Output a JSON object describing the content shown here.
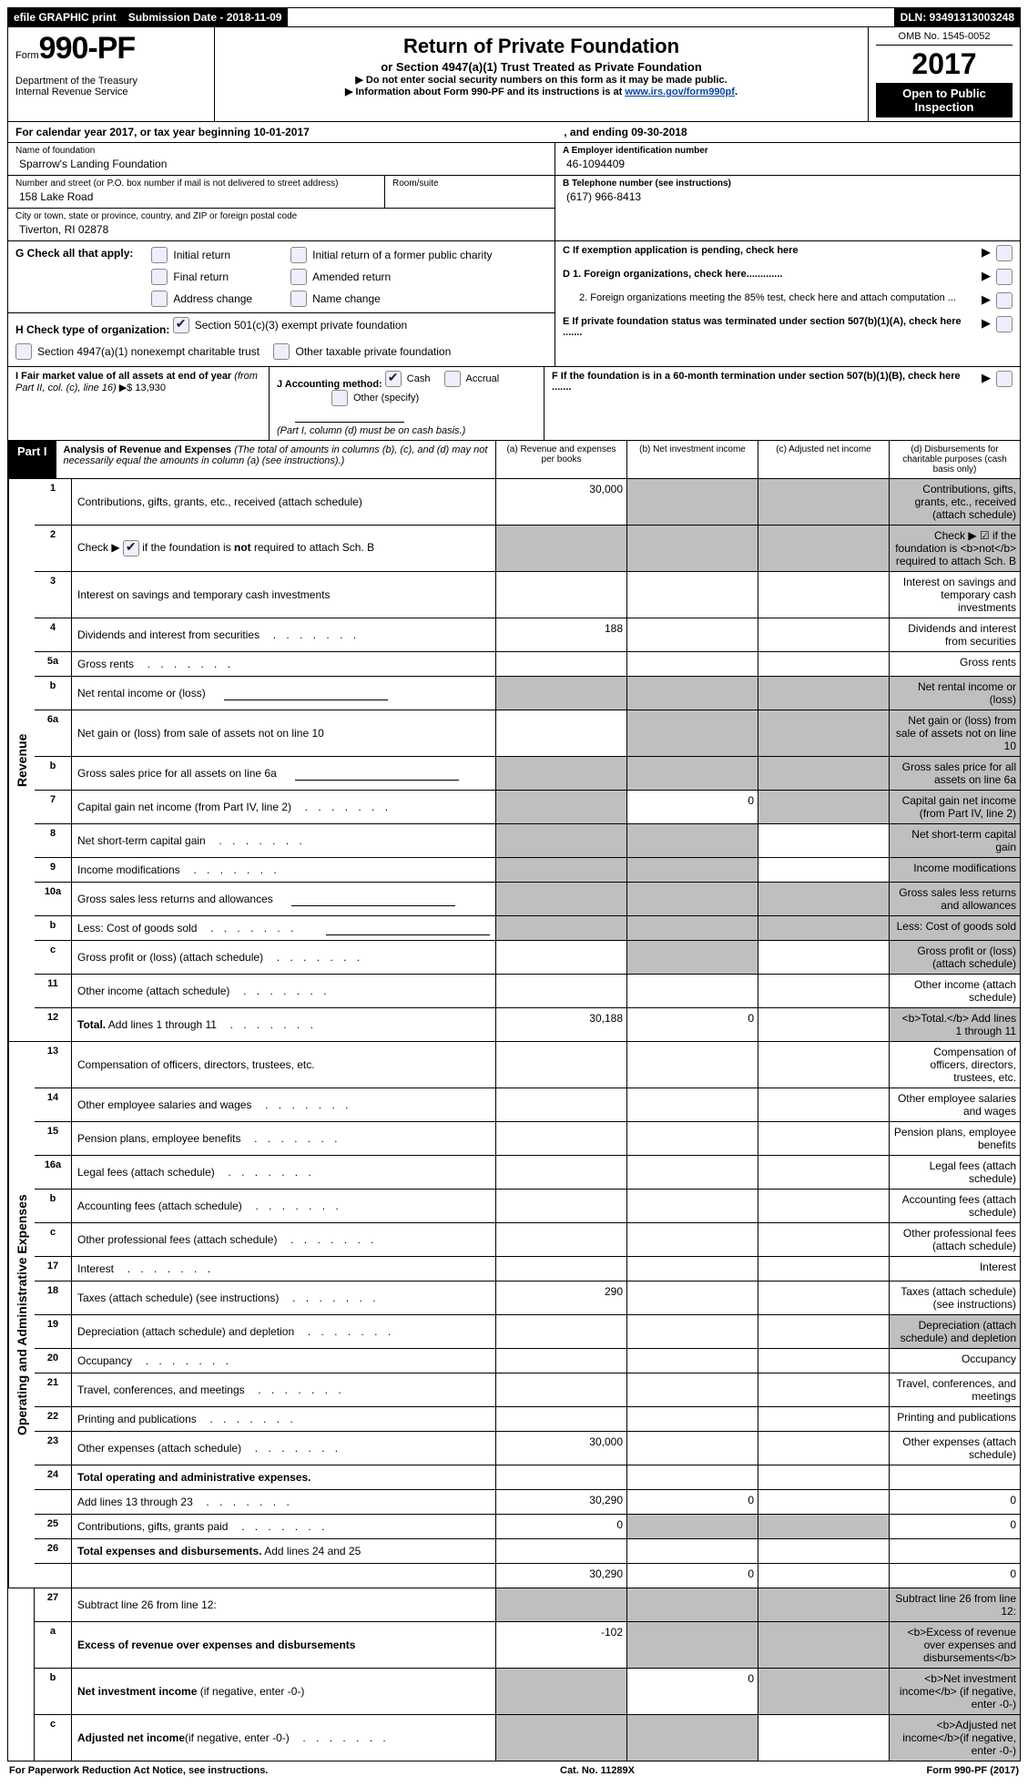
{
  "topbar": {
    "efile": "efile GRAPHIC print",
    "submission_label": "Submission Date - 2018-11-09",
    "dln_label": "DLN: 93491313003248"
  },
  "header": {
    "form_prefix": "Form",
    "form_no": "990-PF",
    "dept1": "Department of the Treasury",
    "dept2": "Internal Revenue Service",
    "title": "Return of Private Foundation",
    "subtitle": "or Section 4947(a)(1) Trust Treated as Private Foundation",
    "note1": "▶ Do not enter social security numbers on this form as it may be made public.",
    "note2_pre": "▶ Information about Form 990-PF and its instructions is at ",
    "note2_link": "www.irs.gov/form990pf",
    "omb": "OMB No. 1545-0052",
    "year": "2017",
    "open": "Open to Public Inspection"
  },
  "period": {
    "line_a": "For calendar year 2017, or tax year beginning 10-01-2017",
    "line_b": ", and ending 09-30-2018"
  },
  "entity": {
    "name_label": "Name of foundation",
    "name": "Sparrow's Landing Foundation",
    "street_label": "Number and street (or P.O. box number if mail is not delivered to street address)",
    "room_label": "Room/suite",
    "street": "158 Lake Road",
    "city_label": "City or town, state or province, country, and ZIP or foreign postal code",
    "city": "Tiverton, RI  02878"
  },
  "rightbox": {
    "a_label": "A Employer identification number",
    "a_val": "46-1094409",
    "b_label": "B Telephone number (see instructions)",
    "b_val": "(617) 966-8413",
    "c_label": "C  If exemption application is pending, check here",
    "d1": "D 1. Foreign organizations, check here.............",
    "d2": "2. Foreign organizations meeting the 85% test, check here and attach computation ...",
    "e": "E   If private foundation status was terminated under section 507(b)(1)(A), check here .......",
    "f": "F   If the foundation is in a 60-month termination under section 507(b)(1)(B), check here ......."
  },
  "g": {
    "label": "G Check all that apply:",
    "opts": [
      "Initial return",
      "Initial return of a former public charity",
      "Final return",
      "Amended return",
      "Address change",
      "Name change"
    ]
  },
  "h": {
    "label": "H Check type of organization:",
    "opt1": "Section 501(c)(3) exempt private foundation",
    "opt2": "Section 4947(a)(1) nonexempt charitable trust",
    "opt3": "Other taxable private foundation"
  },
  "i": {
    "label": "I Fair market value of all assets at end of year ",
    "italic": "(from Part II, col. (c), line 16)",
    "arrow": "▶$",
    "value": "  13,930"
  },
  "j": {
    "label": "J Accounting method:",
    "cash": "Cash",
    "accrual": "Accrual",
    "other": "Other (specify)",
    "note": "(Part I, column (d) must be on cash basis.)"
  },
  "part1": {
    "label": "Part I",
    "title": "Analysis of Revenue and Expenses",
    "note": " (The total of amounts in columns (b), (c), and (d) may not necessarily equal the amounts in column (a) (see instructions).)",
    "cols": {
      "a": "(a)     Revenue and expenses per books",
      "b": "(b)     Net investment income",
      "c": "(c)     Adjusted net income",
      "d": "(d)     Disbursements for charitable purposes (cash basis only)"
    }
  },
  "revenue_label": "Revenue",
  "expense_label": "Operating and Administrative Expenses",
  "rows_rev": [
    {
      "n": "1",
      "d": "Contributions, gifts, grants, etc., received (attach schedule)",
      "a": "30,000",
      "grey": [
        "b",
        "c",
        "d"
      ]
    },
    {
      "n": "2",
      "d": "Check ▶ ☑ if the foundation is <b>not</b> required to attach Sch. B",
      "grey": [
        "a",
        "b",
        "c",
        "d"
      ],
      "cb": true
    },
    {
      "n": "3",
      "d": "Interest on savings and temporary cash investments"
    },
    {
      "n": "4",
      "d": "Dividends and interest from securities",
      "a": "188",
      "dots": true
    },
    {
      "n": "5a",
      "d": "Gross rents",
      "dots": true
    },
    {
      "n": "b",
      "d": "Net rental income or (loss)",
      "grey": [
        "a",
        "b",
        "c",
        "d"
      ],
      "input": true
    },
    {
      "n": "6a",
      "d": "Net gain or (loss) from sale of assets not on line 10",
      "grey": [
        "b",
        "c",
        "d"
      ]
    },
    {
      "n": "b",
      "d": "Gross sales price for all assets on line 6a",
      "grey": [
        "a",
        "b",
        "c",
        "d"
      ],
      "input": true
    },
    {
      "n": "7",
      "d": "Capital gain net income (from Part IV, line 2)",
      "b": "0",
      "grey": [
        "a",
        "c",
        "d"
      ],
      "dots": true
    },
    {
      "n": "8",
      "d": "Net short-term capital gain",
      "grey": [
        "a",
        "b",
        "d"
      ],
      "dots": true
    },
    {
      "n": "9",
      "d": "Income modifications",
      "grey": [
        "a",
        "b",
        "d"
      ],
      "dots": true
    },
    {
      "n": "10a",
      "d": "Gross sales less returns and allowances",
      "grey": [
        "a",
        "b",
        "c",
        "d"
      ],
      "input": true
    },
    {
      "n": "b",
      "d": "Less: Cost of goods sold",
      "grey": [
        "a",
        "b",
        "c",
        "d"
      ],
      "input": true,
      "dots": true
    },
    {
      "n": "c",
      "d": "Gross profit or (loss) (attach schedule)",
      "grey": [
        "b",
        "d"
      ],
      "dots": true
    },
    {
      "n": "11",
      "d": "Other income (attach schedule)",
      "dots": true
    },
    {
      "n": "12",
      "d": "<b>Total.</b> Add lines 1 through 11",
      "a": "30,188",
      "b": "0",
      "grey": [
        "d"
      ],
      "dots": true
    }
  ],
  "rows_exp": [
    {
      "n": "13",
      "d": "Compensation of officers, directors, trustees, etc."
    },
    {
      "n": "14",
      "d": "Other employee salaries and wages",
      "dots": true
    },
    {
      "n": "15",
      "d": "Pension plans, employee benefits",
      "dots": true
    },
    {
      "n": "16a",
      "d": "Legal fees (attach schedule)",
      "dots": true
    },
    {
      "n": "b",
      "d": "Accounting fees (attach schedule)",
      "dots": true
    },
    {
      "n": "c",
      "d": "Other professional fees (attach schedule)",
      "dots": true
    },
    {
      "n": "17",
      "d": "Interest",
      "dots": true
    },
    {
      "n": "18",
      "d": "Taxes (attach schedule) (see instructions)",
      "a": "290",
      "dots": true
    },
    {
      "n": "19",
      "d": "Depreciation (attach schedule) and depletion",
      "grey": [
        "d"
      ],
      "dots": true
    },
    {
      "n": "20",
      "d": "Occupancy",
      "dots": true
    },
    {
      "n": "21",
      "d": "Travel, conferences, and meetings",
      "dots": true
    },
    {
      "n": "22",
      "d": "Printing and publications",
      "dots": true
    },
    {
      "n": "23",
      "d": "Other expenses (attach schedule)",
      "a": "30,000",
      "dots": true
    },
    {
      "n": "24",
      "d": "<b>Total operating and administrative expenses.</b>",
      "noval": true
    },
    {
      "n": "",
      "d": "Add lines 13 through 23",
      "a": "30,290",
      "b": "0",
      "d_": "0",
      "dots": true
    },
    {
      "n": "25",
      "d": "Contributions, gifts, grants paid",
      "a": "0",
      "d_": "0",
      "grey": [
        "b",
        "c"
      ],
      "dots": true
    },
    {
      "n": "26",
      "d": "<b>Total expenses and disbursements.</b> Add lines 24 and 25",
      "noval": true
    },
    {
      "n": "",
      "d": "",
      "a": "30,290",
      "b": "0",
      "d_": "0"
    }
  ],
  "rows_27": [
    {
      "n": "27",
      "d": "Subtract line 26 from line 12:",
      "grey": [
        "a",
        "b",
        "c",
        "d"
      ]
    },
    {
      "n": "a",
      "d": "<b>Excess of revenue over expenses and disbursements</b>",
      "a": "-102",
      "grey": [
        "b",
        "c",
        "d"
      ]
    },
    {
      "n": "b",
      "d": "<b>Net investment income</b> (if negative, enter -0-)",
      "b": "0",
      "grey": [
        "a",
        "c",
        "d"
      ]
    },
    {
      "n": "c",
      "d": "<b>Adjusted net income</b>(if negative, enter -0-)",
      "grey": [
        "a",
        "b",
        "d"
      ],
      "dots": true
    }
  ],
  "footer": {
    "left": "For Paperwork Reduction Act Notice, see instructions.",
    "mid": "Cat. No. 11289X",
    "right": "Form 990-PF (2017)"
  }
}
